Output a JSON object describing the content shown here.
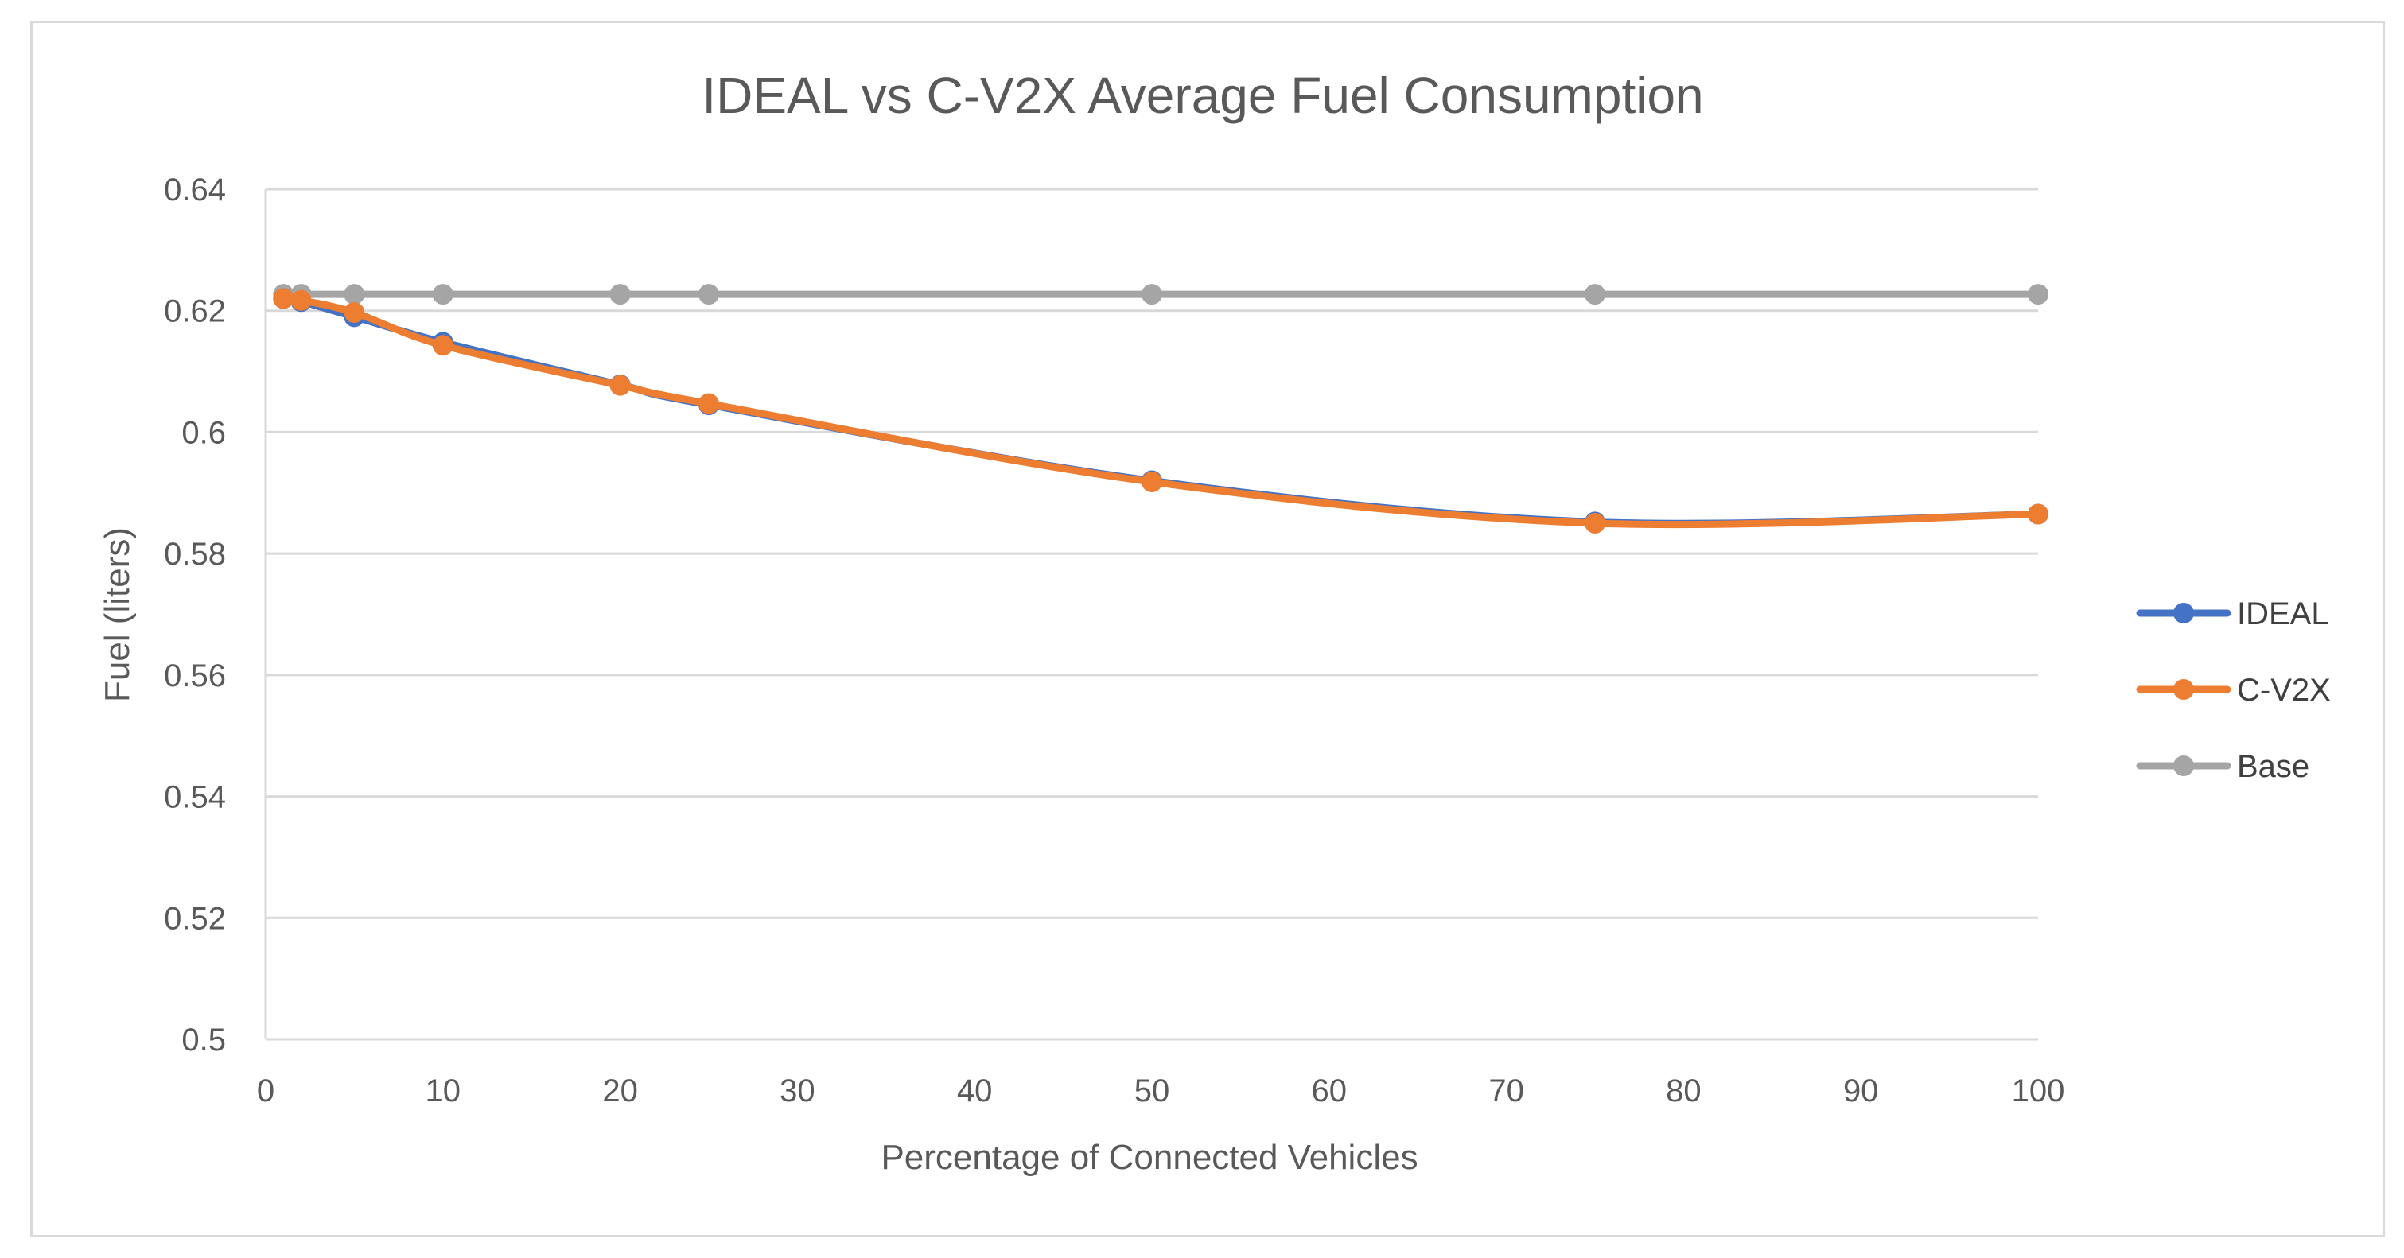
{
  "chart_data": {
    "type": "line",
    "title": "IDEAL vs C-V2X Average Fuel Consumption",
    "xlabel": "Percentage of Connected Vehicles",
    "ylabel": "Fuel (liters)",
    "xlim": [
      0,
      100
    ],
    "ylim": [
      0.5,
      0.64
    ],
    "xticks": [
      0,
      10,
      20,
      30,
      40,
      50,
      60,
      70,
      80,
      90,
      100
    ],
    "yticks": [
      0.5,
      0.52,
      0.54,
      0.56,
      0.58,
      0.6,
      0.62,
      0.64
    ],
    "xtick_labels": [
      "0",
      "10",
      "20",
      "30",
      "40",
      "50",
      "60",
      "70",
      "80",
      "90",
      "100"
    ],
    "ytick_labels": [
      "0.5",
      "0.52",
      "0.54",
      "0.56",
      "0.58",
      "0.6",
      "0.62",
      "0.64"
    ],
    "grid": true,
    "legend_position": "right",
    "x": [
      1,
      2,
      5,
      10,
      20,
      25,
      50,
      75,
      100
    ],
    "series": [
      {
        "name": "IDEAL",
        "color": "#4472C4",
        "values": [
          0.622,
          0.6215,
          0.619,
          0.6148,
          0.6078,
          0.6045,
          0.592,
          0.5852,
          0.5865
        ]
      },
      {
        "name": "C-V2X",
        "color": "#ED7D31",
        "values": [
          0.622,
          0.6217,
          0.6197,
          0.6143,
          0.6077,
          0.6047,
          0.5918,
          0.585,
          0.5865
        ]
      },
      {
        "name": "Base",
        "color": "#A5A5A5",
        "values": [
          0.6227,
          0.6227,
          0.6227,
          0.6227,
          0.6227,
          0.6227,
          0.6227,
          0.6227,
          0.6227
        ]
      }
    ]
  }
}
